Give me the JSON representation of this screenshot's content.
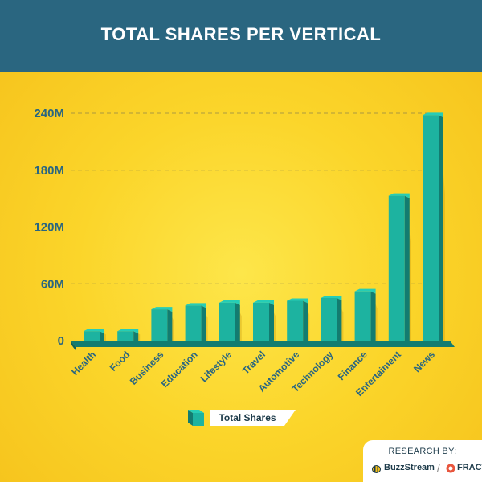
{
  "header": {
    "title": "TOTAL SHARES PER VERTICAL"
  },
  "colors": {
    "banner": "#2a6680",
    "bar_front": "#1db3a0",
    "bar_side": "#137c70",
    "bar_top": "#26cdb6",
    "axis_text": "#2a6680",
    "background": "#fbd52a"
  },
  "chart_data": {
    "type": "bar",
    "title": "TOTAL SHARES PER VERTICAL",
    "categories": [
      "Health",
      "Food",
      "Business",
      "Education",
      "Lifestyle",
      "Travel",
      "Automotive",
      "Technology",
      "Finance",
      "Entertaiment",
      "News"
    ],
    "series": [
      {
        "name": "Total Shares",
        "values": [
          10,
          10,
          33,
          37,
          40,
          40,
          42,
          45,
          52,
          153,
          238
        ]
      }
    ],
    "unit": "M",
    "yticks": [
      "0",
      "60M",
      "120M",
      "180M",
      "240M"
    ],
    "ylim": [
      0,
      240
    ],
    "grid": true,
    "legend": "bottom-center"
  },
  "legend": {
    "label": "Total Shares"
  },
  "credit": {
    "research_by": "RESEARCH BY:",
    "brand_1": "BuzzStream",
    "divider": "/",
    "brand_2": "FRACTL"
  }
}
